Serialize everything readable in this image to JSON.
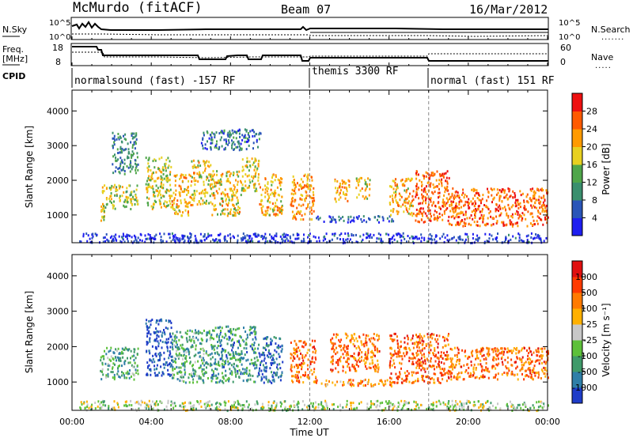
{
  "header": {
    "station": "McMurdo (fitACF)",
    "beam": "Beam 07",
    "date": "16/Mar/2012"
  },
  "status_panel": {
    "nsky_label": "N.Sky",
    "nsearch_label": "N.Search",
    "nsky_ticks": [
      "10^5",
      "10^0"
    ],
    "nsearch_ticks": [
      "10^5",
      "10^0"
    ],
    "freq_label": "Freq.",
    "freq_unit": "[MHz]",
    "freq_ticks": [
      "18",
      "8"
    ],
    "nave_label": "Nave",
    "nave_ticks": [
      "60",
      "0"
    ],
    "cpid_label": "CPID",
    "cpid_segments": [
      {
        "label": "normalsound (fast) -157 RF",
        "start_hour": 0,
        "end_hour": 12
      },
      {
        "label": "themis 3300 RF",
        "start_hour": 12,
        "end_hour": 18
      },
      {
        "label": "normal (fast) 151 RF",
        "start_hour": 18,
        "end_hour": 24
      }
    ]
  },
  "chart_data": [
    {
      "type": "heatmap",
      "title": "",
      "ylabel": "Slant Range [km]",
      "xlabel": "",
      "xlim": [
        0,
        24
      ],
      "ylim": [
        200,
        4600
      ],
      "yticks": [
        "1000",
        "2000",
        "3000",
        "4000"
      ],
      "colorbar_label": "Power [dB]",
      "colorbar_ticks": [
        "4",
        "8",
        "12",
        "16",
        "20",
        "24",
        "28"
      ],
      "colorbar_colors": [
        "#1e1ef0",
        "#2a55b8",
        "#3a8f6e",
        "#4fa64a",
        "#e8d020",
        "#ff9a00",
        "#ff5a00",
        "#ee1010"
      ],
      "patches": [
        {
          "x0": 1.4,
          "x1": 1.6,
          "y0": 800,
          "y1": 1400,
          "v": 0.6
        },
        {
          "x0": 1.5,
          "x1": 3.3,
          "y0": 1200,
          "y1": 1900,
          "v": 0.5
        },
        {
          "x0": 2.0,
          "x1": 3.3,
          "y0": 2200,
          "y1": 3400,
          "v": 0.3
        },
        {
          "x0": 3.7,
          "x1": 5.0,
          "y0": 1200,
          "y1": 2700,
          "v": 0.55
        },
        {
          "x0": 5.0,
          "x1": 6.0,
          "y0": 1000,
          "y1": 2200,
          "v": 0.65
        },
        {
          "x0": 6.0,
          "x1": 7.0,
          "y0": 1300,
          "y1": 2600,
          "v": 0.6
        },
        {
          "x0": 7.0,
          "x1": 8.5,
          "y0": 1000,
          "y1": 2300,
          "v": 0.6
        },
        {
          "x0": 8.5,
          "x1": 9.4,
          "y0": 1700,
          "y1": 2700,
          "v": 0.55
        },
        {
          "x0": 9.4,
          "x1": 10.6,
          "y0": 1000,
          "y1": 2200,
          "v": 0.65
        },
        {
          "x0": 6.5,
          "x1": 9.5,
          "y0": 2900,
          "y1": 3500,
          "v": 0.25
        },
        {
          "x0": 11.0,
          "x1": 12.2,
          "y0": 900,
          "y1": 2200,
          "v": 0.7
        },
        {
          "x0": 12.2,
          "x1": 16.2,
          "y0": 820,
          "y1": 1000,
          "v": 0.15
        },
        {
          "x0": 13.2,
          "x1": 14.0,
          "y0": 1400,
          "y1": 2100,
          "v": 0.7
        },
        {
          "x0": 14.3,
          "x1": 15.0,
          "y0": 1500,
          "y1": 2100,
          "v": 0.6
        },
        {
          "x0": 16.0,
          "x1": 17.2,
          "y0": 1000,
          "y1": 2100,
          "v": 0.65
        },
        {
          "x0": 17.3,
          "x1": 19.0,
          "y0": 800,
          "y1": 2300,
          "v": 0.8
        },
        {
          "x0": 19.0,
          "x1": 24.0,
          "y0": 700,
          "y1": 1800,
          "v": 0.8
        },
        {
          "x0": 0.3,
          "x1": 24.0,
          "y0": 220,
          "y1": 500,
          "v": 0.1
        }
      ]
    },
    {
      "type": "heatmap",
      "title": "",
      "ylabel": "Slant Range [km]",
      "xlabel": "Time UT",
      "xlim": [
        0,
        24
      ],
      "ylim": [
        200,
        4600
      ],
      "yticks": [
        "1000",
        "2000",
        "3000",
        "4000"
      ],
      "xticks": [
        "00:00",
        "04:00",
        "08:00",
        "12:00",
        "16:00",
        "20:00",
        "00:00"
      ],
      "colorbar_label": "Velocity [m s⁻¹]",
      "colorbar_ticks": [
        "1000",
        "500",
        "100",
        "25",
        "-25",
        "-100",
        "-500",
        "-1000"
      ],
      "colorbar_colors": [
        "#1e3cc8",
        "#2f7fa8",
        "#3f9a6a",
        "#5dc03a",
        "#c8c8c8",
        "#ffb000",
        "#ff7a00",
        "#ff3a00",
        "#e01010"
      ],
      "patches": [
        {
          "x0": 1.4,
          "x1": 3.3,
          "y0": 1100,
          "y1": 2000,
          "v": 0.3
        },
        {
          "x0": 3.7,
          "x1": 5.0,
          "y0": 1200,
          "y1": 2800,
          "v": 0.05
        },
        {
          "x0": 5.0,
          "x1": 7.0,
          "y0": 1000,
          "y1": 2500,
          "v": 0.3
        },
        {
          "x0": 7.0,
          "x1": 9.4,
          "y0": 1000,
          "y1": 2600,
          "v": 0.25
        },
        {
          "x0": 9.4,
          "x1": 10.6,
          "y0": 1000,
          "y1": 2300,
          "v": 0.1
        },
        {
          "x0": 11.0,
          "x1": 12.3,
          "y0": 1000,
          "y1": 2200,
          "v": 0.75
        },
        {
          "x0": 12.3,
          "x1": 16.2,
          "y0": 900,
          "y1": 1100,
          "v": 0.7
        },
        {
          "x0": 13.0,
          "x1": 15.5,
          "y0": 1300,
          "y1": 2400,
          "v": 0.75
        },
        {
          "x0": 16.0,
          "x1": 19.0,
          "y0": 1000,
          "y1": 2400,
          "v": 0.78
        },
        {
          "x0": 19.0,
          "x1": 24.0,
          "y0": 1100,
          "y1": 2000,
          "v": 0.75
        },
        {
          "x0": 0.3,
          "x1": 24.0,
          "y0": 220,
          "y1": 500,
          "v": 0.45
        }
      ]
    }
  ]
}
